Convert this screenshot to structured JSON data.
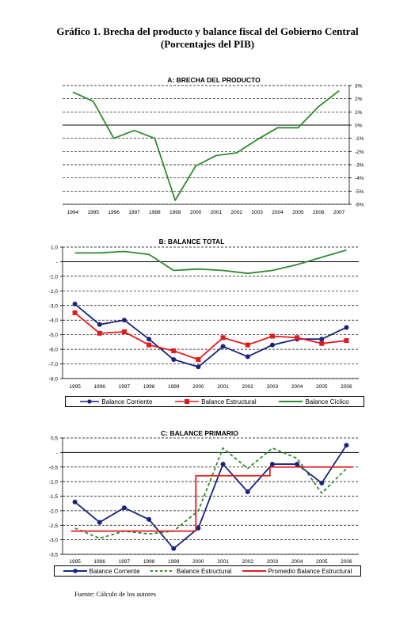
{
  "page": {
    "title_line1": "Gráfico 1. Brecha del producto y balance fiscal del Gobierno Central",
    "title_line2": "(Porcentajes del PIB)",
    "source": "Fuente: Cálculo de los autores"
  },
  "chart_data": [
    {
      "type": "line",
      "title": "A:  BRECHA DEL PRODUCTO",
      "x": [
        "1994",
        "1995",
        "1996",
        "1997",
        "1998",
        "1999",
        "2000",
        "2001",
        "2002",
        "2003",
        "2004",
        "2005",
        "2006",
        "2007"
      ],
      "ylim": [
        -6,
        3
      ],
      "yticks": [
        3,
        2,
        1,
        0,
        -1,
        -2,
        -3,
        -4,
        -5,
        -6
      ],
      "ytick_labels": [
        "3%",
        "2%",
        "1%",
        "0%",
        "-1%",
        "-2%",
        "-3%",
        "-4%",
        "-5%",
        "-6%"
      ],
      "y_axis_side": "right",
      "grid": "dashed horizontal",
      "series": [
        {
          "color": "#2e8b2e",
          "style": "solid",
          "values": [
            2.5,
            1.8,
            -1.0,
            -0.4,
            -1.0,
            -5.7,
            -3.1,
            -2.3,
            -2.1,
            -1.1,
            -0.2,
            -0.2,
            1.4,
            2.6
          ]
        }
      ]
    },
    {
      "type": "line",
      "title": "B:  BALANCE TOTAL",
      "x": [
        "1995",
        "1996",
        "1997",
        "1998",
        "1999",
        "2000",
        "2001",
        "2002",
        "2003",
        "2004",
        "2005",
        "2006"
      ],
      "ylim": [
        -8,
        1
      ],
      "yticks": [
        1,
        0,
        -1,
        -2,
        -3,
        -4,
        -5,
        -6,
        -7,
        -8
      ],
      "ytick_labels": [
        "1,0",
        "-",
        "-1,0",
        "-2,0",
        "-3,0",
        "-4,0",
        "-5,0",
        "-6,0",
        "-7,0",
        "-8,0"
      ],
      "y_axis_side": "left",
      "grid": "dashed horizontal",
      "legend_position": "bottom",
      "series": [
        {
          "name": "Balance Corriente",
          "color": "#1a237e",
          "style": "solid",
          "marker": "circle",
          "values": [
            -2.9,
            -4.3,
            -4.0,
            -5.3,
            -6.7,
            -7.2,
            -5.8,
            -6.5,
            -5.7,
            -5.3,
            -5.3,
            -4.5
          ]
        },
        {
          "name": "Balance Estructural",
          "color": "#e31a1c",
          "style": "solid",
          "marker": "square",
          "values": [
            -3.5,
            -4.9,
            -4.8,
            -5.7,
            -6.1,
            -6.7,
            -5.2,
            -5.7,
            -5.1,
            -5.2,
            -5.6,
            -5.4
          ]
        },
        {
          "name": "Balance Cíclico",
          "color": "#2e8b2e",
          "style": "solid",
          "values": [
            0.6,
            0.6,
            0.7,
            0.5,
            -0.6,
            -0.5,
            -0.6,
            -0.8,
            -0.6,
            -0.2,
            0.3,
            0.8
          ]
        }
      ]
    },
    {
      "type": "line",
      "title": "C:  BALANCE PRIMARIO",
      "x": [
        "1995",
        "1996",
        "1997",
        "1998",
        "1999",
        "2000",
        "2001",
        "2002",
        "2003",
        "2004",
        "2005",
        "2006"
      ],
      "ylim": [
        -3.5,
        0.5
      ],
      "yticks": [
        0.5,
        0,
        -0.5,
        -1,
        -1.5,
        -2,
        -2.5,
        -3,
        -3.5
      ],
      "ytick_labels": [
        "0,5",
        "-",
        "-0,5",
        "-1,0",
        "-1,5",
        "-2,0",
        "-2,5",
        "-3,0",
        "-3,5"
      ],
      "y_axis_side": "left",
      "grid": "dashed horizontal",
      "legend_position": "bottom",
      "series": [
        {
          "name": "Balance Corriente",
          "color": "#1a237e",
          "style": "solid",
          "marker": "circle",
          "values": [
            -1.7,
            -2.4,
            -1.9,
            -2.3,
            -3.3,
            -2.6,
            -0.4,
            -1.35,
            -0.4,
            -0.4,
            -1.05,
            0.25
          ]
        },
        {
          "name": "Balance Estructural",
          "color": "#2e8b2e",
          "style": "dashed",
          "values": [
            -2.6,
            -2.95,
            -2.7,
            -2.8,
            -2.7,
            -2.0,
            0.15,
            -0.55,
            0.15,
            -0.2,
            -1.4,
            -0.55
          ]
        },
        {
          "name": "Promedio Balance Estructural",
          "color": "#e31a1c",
          "style": "step",
          "values": [
            -2.7,
            -2.7,
            -2.7,
            -2.7,
            -2.7,
            -0.8,
            -0.8,
            -0.8,
            -0.5,
            -0.5,
            -0.5,
            -0.5
          ]
        }
      ]
    }
  ]
}
